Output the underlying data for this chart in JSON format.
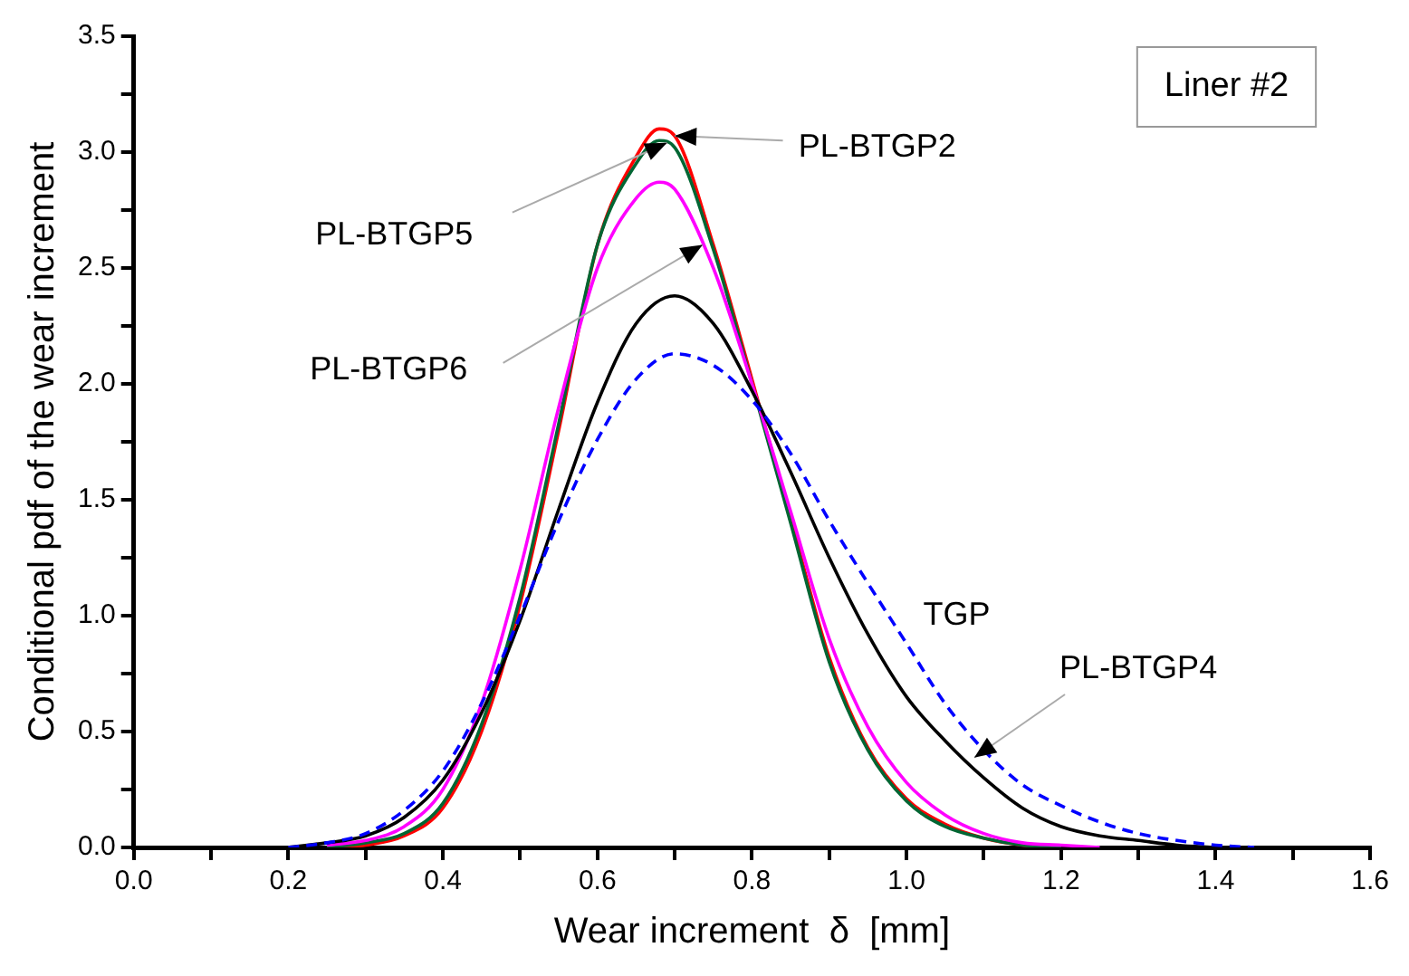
{
  "chart_data": {
    "type": "line",
    "title": "Liner #2",
    "xlabel": "Wear increment  δ  [mm]",
    "ylabel": "Conditional pdf of the wear increment",
    "xlim": [
      0,
      1.6
    ],
    "ylim": [
      0,
      3.5
    ],
    "xticks": [
      {
        "value": 0,
        "label": "0.0"
      },
      {
        "value": 0.1,
        "label": null
      },
      0.2,
      {
        "value": 0.3,
        "label": null
      },
      0.4,
      {
        "value": 0.5,
        "label": null
      },
      0.6,
      {
        "value": 0.7,
        "label": null
      },
      0.8,
      {
        "value": 0.9,
        "label": null
      },
      {
        "value": 1.0,
        "label": "1.0"
      },
      {
        "value": 1.1,
        "label": null
      },
      1.2,
      {
        "value": 1.3,
        "label": null
      },
      1.4,
      {
        "value": 1.5,
        "label": null
      },
      1.6
    ],
    "yticks": [
      {
        "value": 0,
        "label": "0.0"
      },
      {
        "value": 0.25,
        "label": null
      },
      0.5,
      {
        "value": 0.75,
        "label": null
      },
      {
        "value": 1.0,
        "label": "1.0"
      },
      {
        "value": 1.25,
        "label": null
      },
      1.5,
      {
        "value": 1.75,
        "label": null
      },
      {
        "value": 2.0,
        "label": "2.0"
      },
      {
        "value": 2.25,
        "label": null
      },
      2.5,
      {
        "value": 2.75,
        "label": null
      },
      {
        "value": 3.0,
        "label": "3.0"
      },
      {
        "value": 3.25,
        "label": null
      },
      3.5
    ],
    "grid": false,
    "legend": false,
    "marker": "none",
    "annotations": [
      {
        "text": "PL-BTGP4",
        "x": 1.08,
        "y": 0.37
      },
      {
        "text": "PL-BTGP5",
        "x": 0.69,
        "y": 3.04
      },
      {
        "text": "PL-BTGP2",
        "x": 0.7,
        "y": 3.07
      }
    ],
    "series": [
      {
        "name": "TGP",
        "color": "#0000ff",
        "line_style": "dashed",
        "x": [
          0.2,
          0.25,
          0.3,
          0.35,
          0.4,
          0.45,
          0.5,
          0.55,
          0.6,
          0.65,
          0.7,
          0.75,
          0.8,
          0.85,
          0.9,
          0.95,
          1.0,
          1.05,
          1.1,
          1.15,
          1.2,
          1.25,
          1.3,
          1.35,
          1.4,
          1.45
        ],
        "values": [
          0,
          0.02,
          0.06,
          0.16,
          0.33,
          0.62,
          1.0,
          1.41,
          1.76,
          2.02,
          2.13,
          2.08,
          1.93,
          1.7,
          1.41,
          1.14,
          0.88,
          0.62,
          0.42,
          0.27,
          0.18,
          0.11,
          0.06,
          0.03,
          0.01,
          0
        ]
      },
      {
        "color": "#000000",
        "line_style": "solid",
        "x": [
          0.2,
          0.25,
          0.3,
          0.35,
          0.4,
          0.45,
          0.5,
          0.55,
          0.6,
          0.65,
          0.7,
          0.75,
          0.8,
          0.85,
          0.9,
          0.95,
          1.0,
          1.05,
          1.1,
          1.15,
          1.2,
          1.25,
          1.3,
          1.35,
          1.4
        ],
        "values": [
          0,
          0.02,
          0.05,
          0.13,
          0.29,
          0.58,
          0.98,
          1.46,
          1.92,
          2.26,
          2.38,
          2.26,
          1.97,
          1.62,
          1.25,
          0.92,
          0.65,
          0.46,
          0.3,
          0.17,
          0.09,
          0.05,
          0.03,
          0.01,
          0
        ]
      },
      {
        "name": "PL-BTGP6",
        "color": "#ff00ff",
        "line_style": "solid",
        "x": [
          0.25,
          0.3,
          0.35,
          0.4,
          0.45,
          0.5,
          0.55,
          0.6,
          0.65,
          0.68,
          0.7,
          0.75,
          0.8,
          0.85,
          0.9,
          0.95,
          1.0,
          1.05,
          1.1,
          1.15,
          1.2,
          1.25
        ],
        "values": [
          0.01,
          0.03,
          0.09,
          0.25,
          0.62,
          1.2,
          1.9,
          2.5,
          2.8,
          2.87,
          2.84,
          2.5,
          2.0,
          1.45,
          0.9,
          0.52,
          0.28,
          0.14,
          0.06,
          0.02,
          0.01,
          0
        ]
      },
      {
        "color": "#006633",
        "line_style": "solid",
        "x": [
          0.25,
          0.3,
          0.35,
          0.4,
          0.45,
          0.5,
          0.55,
          0.6,
          0.65,
          0.68,
          0.7,
          0.75,
          0.8,
          0.85,
          0.9,
          0.95,
          1.0,
          1.05,
          1.1,
          1.15,
          1.2
        ],
        "values": [
          0,
          0.02,
          0.06,
          0.19,
          0.53,
          1.08,
          1.83,
          2.6,
          2.95,
          3.05,
          3.02,
          2.58,
          2.0,
          1.4,
          0.8,
          0.42,
          0.2,
          0.09,
          0.04,
          0.01,
          0
        ]
      },
      {
        "color": "#ff0000",
        "line_style": "solid",
        "x": [
          0.25,
          0.3,
          0.35,
          0.4,
          0.45,
          0.5,
          0.55,
          0.6,
          0.65,
          0.68,
          0.7,
          0.75,
          0.8,
          0.85,
          0.9,
          0.95,
          1.0,
          1.05,
          1.1,
          1.15,
          1.2
        ],
        "values": [
          0,
          0.01,
          0.05,
          0.17,
          0.5,
          1.05,
          1.8,
          2.6,
          2.98,
          3.1,
          3.07,
          2.6,
          2.02,
          1.42,
          0.82,
          0.43,
          0.21,
          0.1,
          0.04,
          0.01,
          0
        ]
      }
    ]
  }
}
